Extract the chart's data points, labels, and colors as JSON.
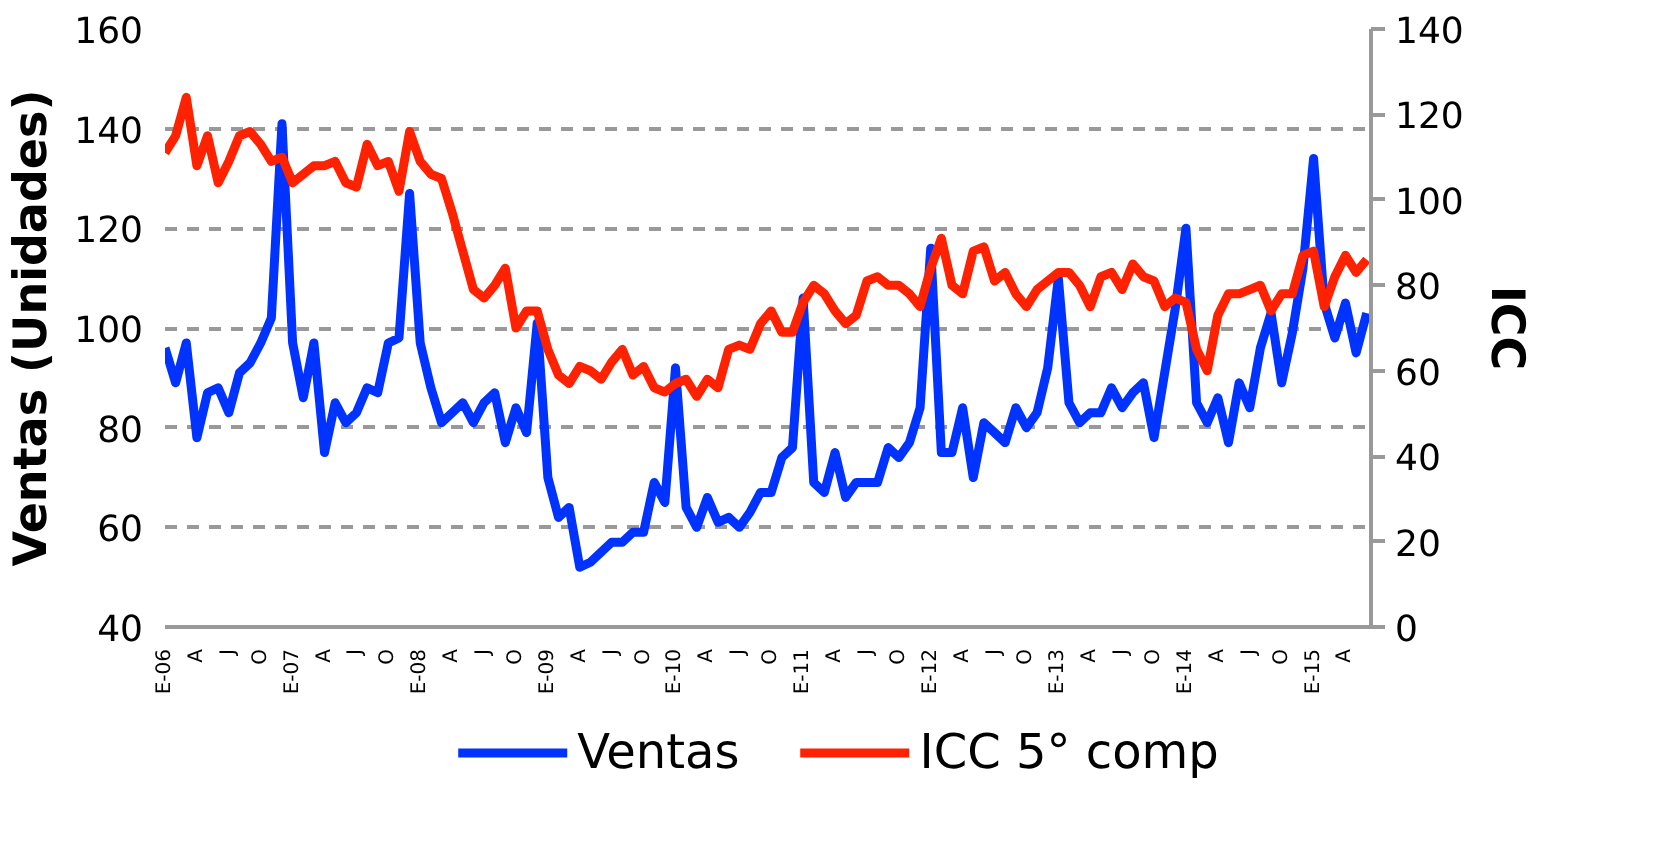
{
  "chart_data": {
    "type": "line",
    "categories": [
      "E-06",
      null,
      null,
      "A",
      null,
      null,
      "J",
      null,
      null,
      "O",
      null,
      null,
      "E-07",
      null,
      null,
      "A",
      null,
      null,
      "J",
      null,
      null,
      "O",
      null,
      null,
      "E-08",
      null,
      null,
      "A",
      null,
      null,
      "J",
      null,
      null,
      "O",
      null,
      null,
      "E-09",
      null,
      null,
      "A",
      null,
      null,
      "J",
      null,
      null,
      "O",
      null,
      null,
      "E-10",
      null,
      null,
      "A",
      null,
      null,
      "J",
      null,
      null,
      "O",
      null,
      null,
      "E-11",
      null,
      null,
      "A",
      null,
      null,
      "J",
      null,
      null,
      "O",
      null,
      null,
      "E-12",
      null,
      null,
      "A",
      null,
      null,
      "J",
      null,
      null,
      "O",
      null,
      null,
      "E-13",
      null,
      null,
      "A",
      null,
      null,
      "J",
      null,
      null,
      "O",
      null,
      null,
      "E-14",
      null,
      null,
      "A",
      null,
      null,
      "J",
      null,
      null,
      "O",
      null,
      null,
      "E-15",
      null,
      null,
      "A",
      null,
      null
    ],
    "series": [
      {
        "name": "Ventas",
        "color": "#0033ff",
        "values": [
          96,
          89,
          97,
          78,
          87,
          88,
          83,
          91,
          93,
          97,
          102,
          141,
          97,
          86,
          97,
          75,
          85,
          81,
          83,
          88,
          87,
          97,
          98,
          127,
          97,
          88,
          81,
          83,
          85,
          81,
          85,
          87,
          77,
          84,
          79,
          101,
          70,
          62,
          64,
          52,
          53,
          55,
          57,
          57,
          59,
          59,
          69,
          65,
          92,
          64,
          60,
          66,
          61,
          62,
          60,
          63,
          67,
          67,
          74,
          76,
          106,
          69,
          67,
          75,
          66,
          69,
          69,
          69,
          76,
          74,
          77,
          84,
          116,
          75,
          75,
          84,
          70,
          81,
          79,
          77,
          84,
          80,
          83,
          92,
          110,
          85,
          81,
          83,
          83,
          88,
          84,
          87,
          89,
          78,
          91,
          104,
          120,
          85,
          81,
          86,
          77,
          89,
          84,
          96,
          103,
          89,
          99,
          112,
          134,
          105,
          98,
          105,
          95,
          103
        ]
      },
      {
        "name": "ICC 5° comp",
        "color": "#ff2200",
        "axis": "y2",
        "values": [
          111,
          115,
          124,
          108,
          115,
          104,
          109,
          115,
          116,
          113,
          109,
          110,
          104,
          106,
          108,
          108,
          109,
          104,
          103,
          113,
          108,
          109,
          102,
          116,
          109,
          106,
          105,
          97,
          88,
          79,
          77,
          80,
          84,
          70,
          74,
          74,
          65,
          59,
          57,
          61,
          60,
          58,
          62,
          65,
          59,
          61,
          56,
          55,
          57,
          58,
          54,
          58,
          56,
          65,
          66,
          65,
          71,
          74,
          69,
          69,
          76,
          80,
          78,
          74,
          71,
          73,
          81,
          82,
          80,
          80,
          78,
          75,
          84,
          91,
          80,
          78,
          88,
          89,
          81,
          83,
          78,
          75,
          79,
          81,
          83,
          83,
          80,
          75,
          82,
          83,
          79,
          85,
          82,
          81,
          75,
          77,
          76,
          65,
          60,
          73,
          78,
          78,
          79,
          80,
          74,
          78,
          78,
          87,
          88,
          75,
          82,
          87,
          83,
          86
        ]
      }
    ],
    "ylim": [
      40,
      160
    ],
    "yticks": [
      40,
      60,
      80,
      100,
      120,
      140,
      160
    ],
    "y2lim": [
      0,
      140
    ],
    "y2ticks": [
      0,
      20,
      40,
      60,
      80,
      100,
      120,
      140
    ],
    "ylabel": "Ventas (Unidades)",
    "y2label": "ICC",
    "grid": "y",
    "legend": "bottom"
  }
}
